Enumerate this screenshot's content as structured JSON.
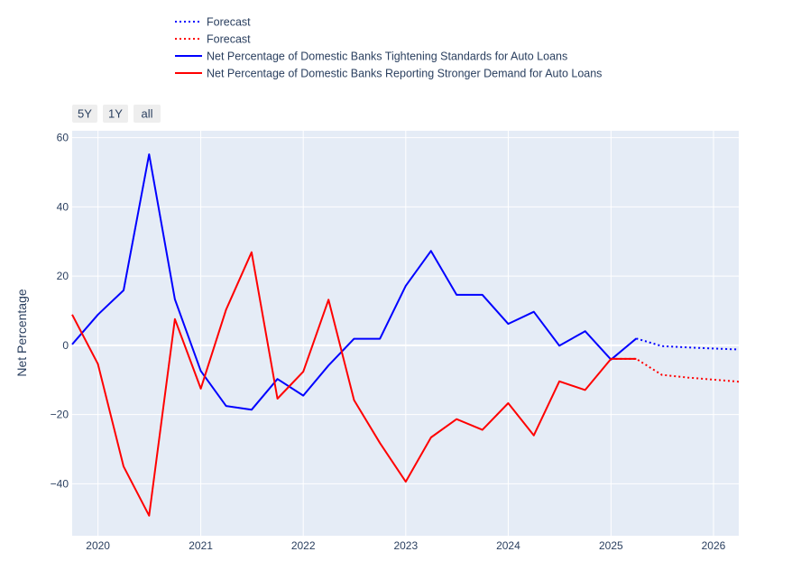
{
  "range_buttons": [
    "5Y",
    "1Y",
    "all"
  ],
  "chart_data": {
    "type": "line",
    "title": "",
    "xlabel": "",
    "ylabel": "Net Percentage",
    "x_tick_labels": [
      "2020",
      "2021",
      "2022",
      "2023",
      "2024",
      "2025",
      "2026"
    ],
    "y_ticks": [
      -40,
      -20,
      0,
      20,
      40,
      60
    ],
    "xlim": [
      "2019-10-01",
      "2026-04-01"
    ],
    "ylim": [
      -55,
      62
    ],
    "grid": true,
    "legend_position": "top-left",
    "series": [
      {
        "name": "Forecast",
        "style": "dotted",
        "color": "#0000ff",
        "x": [
          "2025-04-01",
          "2025-07-01",
          "2025-10-01",
          "2026-01-01",
          "2026-04-01"
        ],
        "y": [
          2.0,
          -0.2,
          -0.6,
          -0.9,
          -1.2
        ]
      },
      {
        "name": "Forecast",
        "style": "dotted",
        "color": "#ff0000",
        "x": [
          "2025-01-01",
          "2025-04-01",
          "2025-07-01",
          "2025-10-01",
          "2026-01-01",
          "2026-04-01"
        ],
        "y": [
          -3.9,
          -3.9,
          -8.5,
          -9.3,
          -9.9,
          -10.5
        ]
      },
      {
        "name": "Net Percentage of Domestic Banks Tightening Standards for Auto Loans",
        "style": "solid",
        "color": "#0000ff",
        "x": [
          "2019-10-01",
          "2020-01-01",
          "2020-04-01",
          "2020-07-01",
          "2020-10-01",
          "2021-01-01",
          "2021-04-01",
          "2021-07-01",
          "2021-10-01",
          "2022-01-01",
          "2022-04-01",
          "2022-07-01",
          "2022-10-01",
          "2023-01-01",
          "2023-04-01",
          "2023-07-01",
          "2023-10-01",
          "2024-01-01",
          "2024-04-01",
          "2024-07-01",
          "2024-10-01",
          "2025-01-01",
          "2025-04-01"
        ],
        "y": [
          0.3,
          8.9,
          15.9,
          55.2,
          13.3,
          -7.4,
          -17.5,
          -18.6,
          -9.7,
          -14.5,
          -5.8,
          1.9,
          1.9,
          17.2,
          27.3,
          14.6,
          14.6,
          6.2,
          9.7,
          -0.1,
          4.1,
          -4.1,
          2.0
        ]
      },
      {
        "name": "Net Percentage of Domestic Banks Reporting Stronger Demand for Auto Loans",
        "style": "solid",
        "color": "#ff0000",
        "x": [
          "2019-10-01",
          "2020-01-01",
          "2020-04-01",
          "2020-07-01",
          "2020-10-01",
          "2021-01-01",
          "2021-04-01",
          "2021-07-01",
          "2021-10-01",
          "2022-01-01",
          "2022-04-01",
          "2022-07-01",
          "2022-10-01",
          "2023-01-01",
          "2023-04-01",
          "2023-07-01",
          "2023-10-01",
          "2024-01-01",
          "2024-04-01",
          "2024-07-01",
          "2024-10-01",
          "2025-01-01",
          "2025-04-01"
        ],
        "y": [
          8.9,
          -5.4,
          -35.0,
          -49.2,
          7.6,
          -12.5,
          10.3,
          26.9,
          -15.4,
          -7.6,
          13.2,
          -15.8,
          -28.2,
          -39.4,
          -26.6,
          -21.3,
          -24.4,
          -16.7,
          -26.0,
          -10.4,
          -12.9,
          -3.9,
          -3.9
        ]
      }
    ]
  }
}
